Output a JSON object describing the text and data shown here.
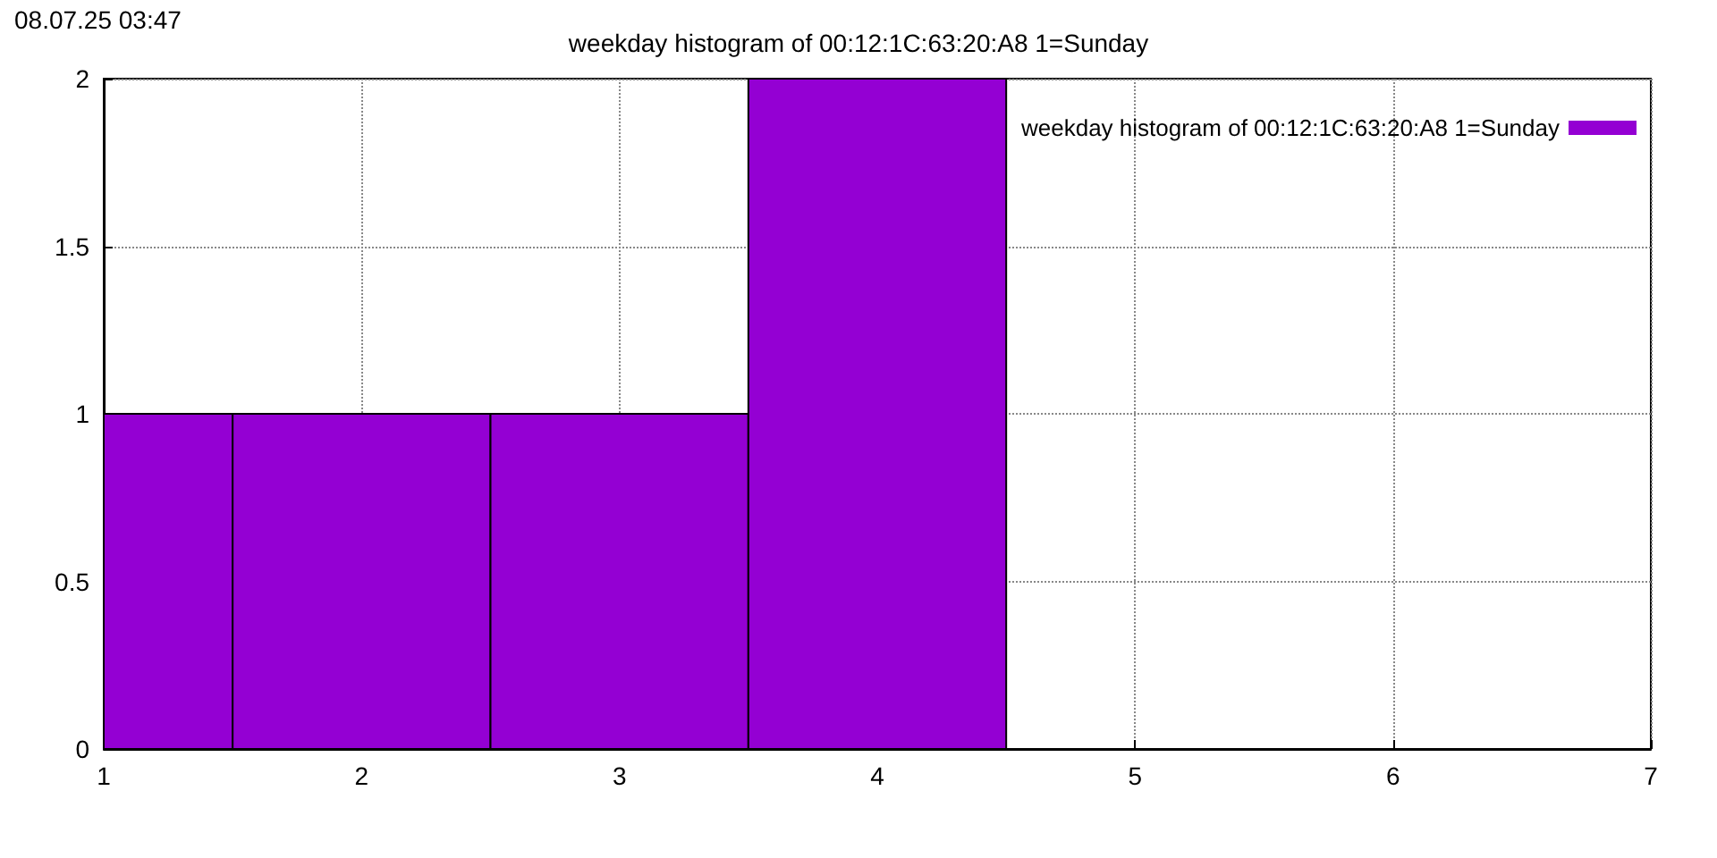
{
  "chart_data": {
    "type": "histogram",
    "title": "weekday histogram of 00:12:1C:63:20:A8 1=Sunday",
    "annotations": [
      "08.07.25 03:47"
    ],
    "bins": [
      1,
      1.5,
      2.5,
      3.5,
      4.5
    ],
    "series": [
      {
        "name": "weekday histogram of 00:12:1C:63:20:A8 1=Sunday",
        "color": "#9400d3",
        "values": [
          1,
          1,
          1,
          2
        ]
      }
    ],
    "xlim": [
      1,
      7
    ],
    "xticks": [
      1,
      2,
      3,
      4,
      5,
      6,
      7
    ],
    "ylim": [
      0,
      2
    ],
    "yticks": [
      0,
      0.5,
      1,
      1.5,
      2
    ],
    "grid": true,
    "legend": "top right"
  }
}
